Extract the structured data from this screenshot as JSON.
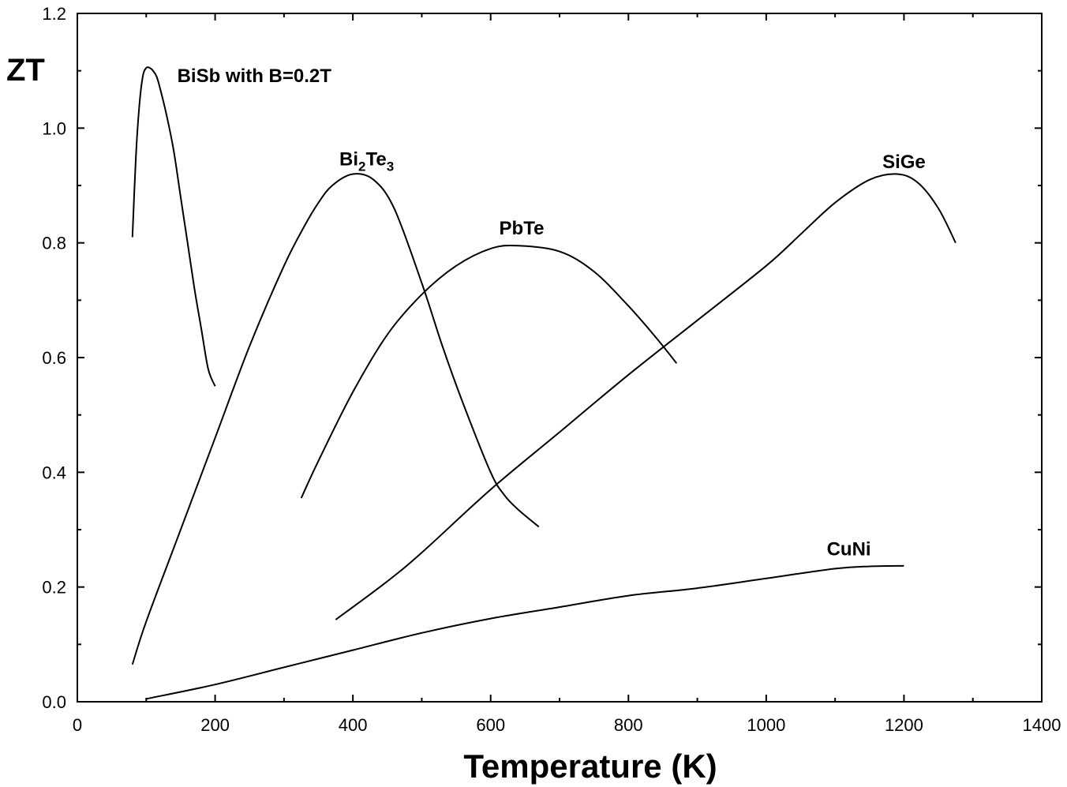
{
  "chart_data": {
    "type": "line",
    "xlabel": "Temperature (K)",
    "ylabel": "ZT",
    "xlim": [
      0,
      1400
    ],
    "ylim": [
      0,
      1.2
    ],
    "xticks": [
      0,
      200,
      400,
      600,
      800,
      1000,
      1200,
      1400
    ],
    "xtick_labels": [
      "0",
      "200",
      "400",
      "600",
      "800",
      "1000",
      "1200",
      "1400"
    ],
    "yticks": [
      0,
      0.2,
      0.4,
      0.6,
      0.8,
      1.0,
      1.2
    ],
    "ytick_labels": [
      "0.0",
      "0.2",
      "0.4",
      "0.6",
      "0.8",
      "1.0",
      "1.2"
    ],
    "grid": false,
    "legend": "none",
    "series": [
      {
        "name": "BiSb with B=0.2T",
        "label_parts": [
          {
            "text": "BiSb with B=0.2T"
          }
        ],
        "x": [
          80,
          85,
          90,
          95,
          100,
          105,
          110,
          115,
          120,
          130,
          140,
          150,
          160,
          170,
          180,
          190,
          200
        ],
        "y": [
          0.81,
          0.95,
          1.04,
          1.09,
          1.105,
          1.105,
          1.1,
          1.09,
          1.07,
          1.02,
          0.96,
          0.88,
          0.8,
          0.72,
          0.65,
          0.58,
          0.55
        ]
      },
      {
        "name": "Bi2Te3",
        "label_parts": [
          {
            "text": "Bi"
          },
          {
            "text": "2",
            "sub": true
          },
          {
            "text": "Te"
          },
          {
            "text": "3",
            "sub": true
          }
        ],
        "x": [
          80,
          100,
          150,
          200,
          250,
          300,
          330,
          350,
          370,
          400,
          430,
          460,
          500,
          530,
          560,
          600,
          620,
          640,
          670
        ],
        "y": [
          0.065,
          0.14,
          0.3,
          0.46,
          0.62,
          0.76,
          0.83,
          0.87,
          0.9,
          0.92,
          0.91,
          0.86,
          0.73,
          0.62,
          0.52,
          0.4,
          0.36,
          0.335,
          0.305
        ]
      },
      {
        "name": "PbTe",
        "label_parts": [
          {
            "text": "PbTe"
          }
        ],
        "x": [
          325,
          350,
          400,
          450,
          500,
          550,
          600,
          640,
          700,
          750,
          800,
          840,
          870
        ],
        "y": [
          0.355,
          0.42,
          0.54,
          0.64,
          0.71,
          0.76,
          0.79,
          0.795,
          0.785,
          0.75,
          0.69,
          0.635,
          0.59
        ]
      },
      {
        "name": "SiGe",
        "label_parts": [
          {
            "text": "SiGe"
          }
        ],
        "x": [
          375,
          450,
          500,
          600,
          700,
          800,
          900,
          1000,
          1050,
          1100,
          1150,
          1190,
          1220,
          1250,
          1275
        ],
        "y": [
          0.143,
          0.21,
          0.26,
          0.37,
          0.47,
          0.57,
          0.665,
          0.76,
          0.815,
          0.87,
          0.91,
          0.92,
          0.905,
          0.86,
          0.8
        ]
      },
      {
        "name": "CuNi",
        "label_parts": [
          {
            "text": "CuNi"
          }
        ],
        "x": [
          100,
          200,
          300,
          400,
          500,
          600,
          700,
          800,
          900,
          1000,
          1100,
          1150,
          1200
        ],
        "y": [
          0.005,
          0.03,
          0.06,
          0.09,
          0.12,
          0.145,
          0.165,
          0.185,
          0.198,
          0.215,
          0.232,
          0.236,
          0.237
        ]
      }
    ],
    "series_labels": [
      {
        "series": 0,
        "x": 145,
        "y": 1.08,
        "anchor": "start"
      },
      {
        "series": 1,
        "x": 420,
        "y": 0.935,
        "anchor": "middle"
      },
      {
        "series": 2,
        "x": 645,
        "y": 0.815,
        "anchor": "middle"
      },
      {
        "series": 3,
        "x": 1200,
        "y": 0.93,
        "anchor": "middle"
      },
      {
        "series": 4,
        "x": 1120,
        "y": 0.255,
        "anchor": "middle"
      }
    ]
  }
}
